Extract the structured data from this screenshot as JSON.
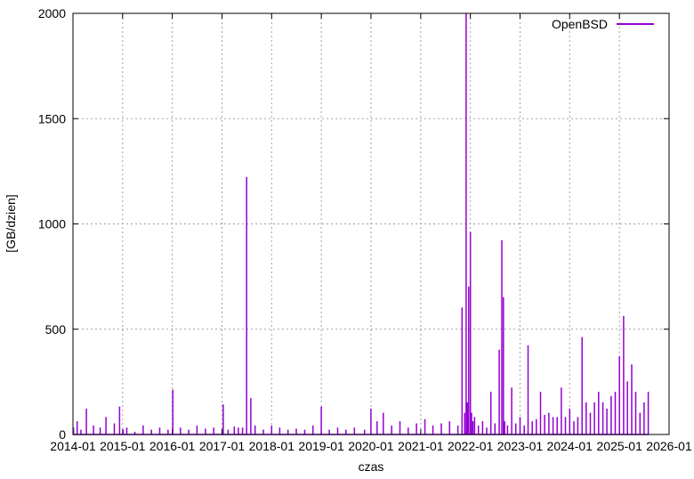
{
  "chart_data": {
    "type": "line",
    "title": "",
    "xlabel": "czas",
    "ylabel": "[GB/dzien]",
    "xlim": [
      "2014-01",
      "2026-01"
    ],
    "ylim": [
      0,
      2000
    ],
    "x_ticks": [
      "2014-01",
      "2015-01",
      "2016-01",
      "2017-01",
      "2018-01",
      "2019-01",
      "2020-01",
      "2021-01",
      "2022-01",
      "2023-01",
      "2024-01",
      "2025-01",
      "2026-01"
    ],
    "y_ticks": [
      0,
      500,
      1000,
      1500,
      2000
    ],
    "grid": true,
    "legend_position": "top-right",
    "color": "#9400d3",
    "series": [
      {
        "name": "OpenBSD",
        "x": [
          "2014-01-05",
          "2014-02-01",
          "2014-03-01",
          "2014-04-10",
          "2014-06-01",
          "2014-07-20",
          "2014-09-01",
          "2014-11-01",
          "2014-12-10",
          "2015-01-05",
          "2015-02-01",
          "2015-04-01",
          "2015-06-01",
          "2015-08-01",
          "2015-10-01",
          "2015-12-01",
          "2016-01-05",
          "2016-03-01",
          "2016-05-01",
          "2016-07-01",
          "2016-09-01",
          "2016-11-01",
          "2017-01-10",
          "2017-02-15",
          "2017-04-01",
          "2017-05-01",
          "2017-06-01",
          "2017-07-01",
          "2017-08-01",
          "2017-09-01",
          "2017-11-01",
          "2018-01-01",
          "2018-03-01",
          "2018-05-01",
          "2018-07-01",
          "2018-09-01",
          "2018-11-01",
          "2019-01-01",
          "2019-03-01",
          "2019-05-01",
          "2019-07-01",
          "2019-09-01",
          "2019-11-15",
          "2020-01-01",
          "2020-02-15",
          "2020-04-01",
          "2020-06-01",
          "2020-08-01",
          "2020-10-01",
          "2020-12-01",
          "2021-02-01",
          "2021-04-01",
          "2021-06-01",
          "2021-08-01",
          "2021-10-01",
          "2021-11-01",
          "2021-11-20",
          "2021-12-01",
          "2021-12-10",
          "2021-12-20",
          "2022-01-01",
          "2022-01-10",
          "2022-01-20",
          "2022-02-01",
          "2022-03-01",
          "2022-04-01",
          "2022-05-01",
          "2022-06-01",
          "2022-07-01",
          "2022-08-01",
          "2022-08-20",
          "2022-09-01",
          "2022-09-10",
          "2022-10-01",
          "2022-11-01",
          "2022-12-01",
          "2023-01-01",
          "2023-02-01",
          "2023-03-01",
          "2023-04-01",
          "2023-05-01",
          "2023-06-01",
          "2023-07-01",
          "2023-08-01",
          "2023-09-01",
          "2023-10-01",
          "2023-11-01",
          "2023-12-01",
          "2024-01-01",
          "2024-02-01",
          "2024-03-01",
          "2024-04-01",
          "2024-05-01",
          "2024-06-01",
          "2024-07-01",
          "2024-08-01",
          "2024-09-01",
          "2024-10-01",
          "2024-11-01",
          "2024-12-01",
          "2025-01-01",
          "2025-02-01",
          "2025-03-01",
          "2025-04-01",
          "2025-05-01",
          "2025-06-01",
          "2025-07-01",
          "2025-08-01"
        ],
        "values": [
          30,
          60,
          20,
          120,
          40,
          30,
          80,
          50,
          130,
          20,
          30,
          10,
          40,
          20,
          30,
          20,
          210,
          30,
          20,
          40,
          25,
          30,
          140,
          20,
          35,
          30,
          30,
          1220,
          170,
          40,
          20,
          40,
          30,
          20,
          25,
          20,
          40,
          130,
          20,
          30,
          20,
          30,
          20,
          120,
          60,
          100,
          40,
          60,
          30,
          50,
          70,
          40,
          50,
          60,
          40,
          600,
          100,
          2000,
          150,
          700,
          960,
          100,
          60,
          80,
          40,
          60,
          30,
          200,
          50,
          400,
          920,
          650,
          60,
          40,
          220,
          50,
          80,
          40,
          420,
          60,
          70,
          200,
          90,
          100,
          80,
          80,
          220,
          80,
          120,
          60,
          80,
          460,
          150,
          100,
          150,
          200,
          150,
          120,
          180,
          200,
          370,
          560,
          250,
          330,
          200,
          100,
          150,
          200
        ]
      }
    ]
  }
}
